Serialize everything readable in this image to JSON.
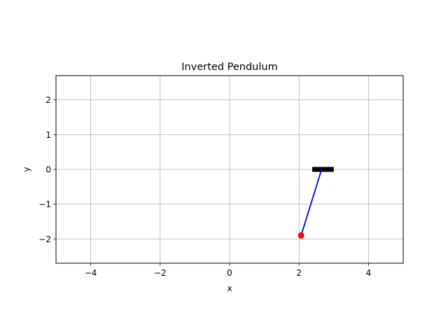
{
  "chart_data": {
    "type": "scatter",
    "title": "Inverted Pendulum",
    "xlabel": "x",
    "ylabel": "y",
    "xlim": [
      -5,
      5
    ],
    "ylim": [
      -2.7,
      2.7
    ],
    "xticks": [
      -4,
      -2,
      0,
      2,
      4
    ],
    "xtick_labels": [
      "−4",
      "−2",
      "0",
      "2",
      "4"
    ],
    "yticks": [
      -2,
      -1,
      0,
      1,
      2
    ],
    "ytick_labels": [
      "−2",
      "−1",
      "0",
      "1",
      "2"
    ],
    "grid": true,
    "cart": {
      "x_start": 2.38,
      "x_end": 3.0,
      "y": 0.0,
      "color": "#000000"
    },
    "rod": {
      "x": [
        2.65,
        2.06
      ],
      "y": [
        0.0,
        -1.9
      ],
      "color": "#0000ff"
    },
    "bob": {
      "x": 2.06,
      "y": -1.9,
      "color": "#ff0000"
    },
    "grid_color": "#b0b0b0"
  }
}
